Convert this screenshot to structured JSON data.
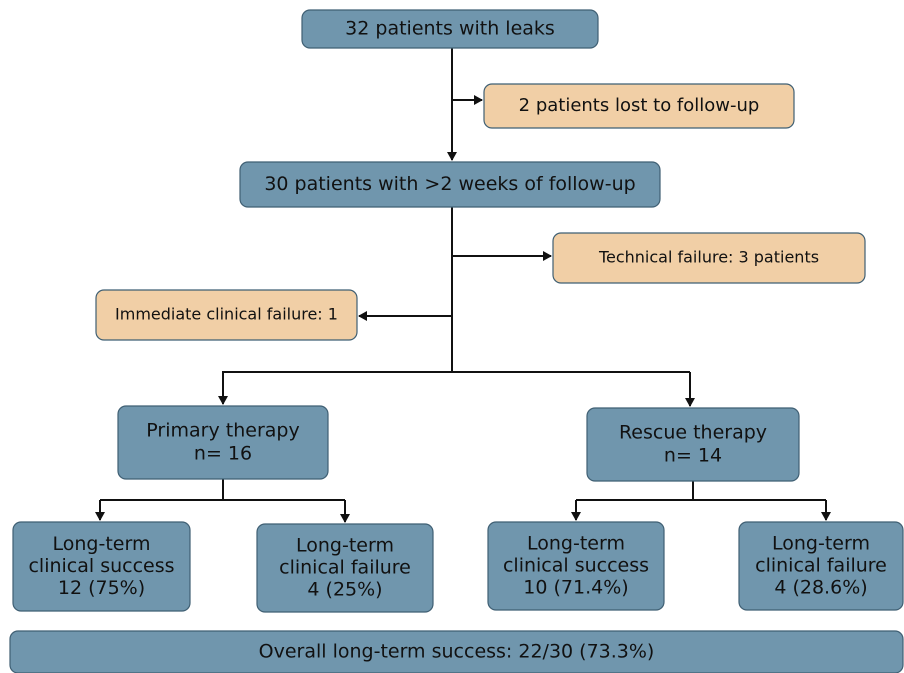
{
  "nodes": [
    {
      "lines": [
        "32 patients with leaks"
      ]
    },
    {
      "lines": [
        "2 patients lost to follow-up"
      ]
    },
    {
      "lines": [
        "30 patients with >2  weeks of follow-up"
      ]
    },
    {
      "lines": [
        "Technical failure: 3 patients"
      ]
    },
    {
      "lines": [
        "Immediate clinical failure: 1"
      ]
    },
    {
      "lines": [
        "Primary therapy",
        "n= 16"
      ]
    },
    {
      "lines": [
        "Rescue therapy",
        "n= 14"
      ]
    },
    {
      "lines": [
        "Long-term",
        "clinical success",
        "12 (75%)"
      ]
    },
    {
      "lines": [
        "Long-term",
        "clinical failure",
        "4 (25%)"
      ]
    },
    {
      "lines": [
        "Long-term",
        "clinical success",
        "10 (71.4%)"
      ]
    },
    {
      "lines": [
        "Long-term",
        "clinical failure",
        "4 (28.6%)"
      ]
    },
    {
      "lines": [
        "Overall long-term success: 22/30 (73.3%)"
      ]
    }
  ]
}
